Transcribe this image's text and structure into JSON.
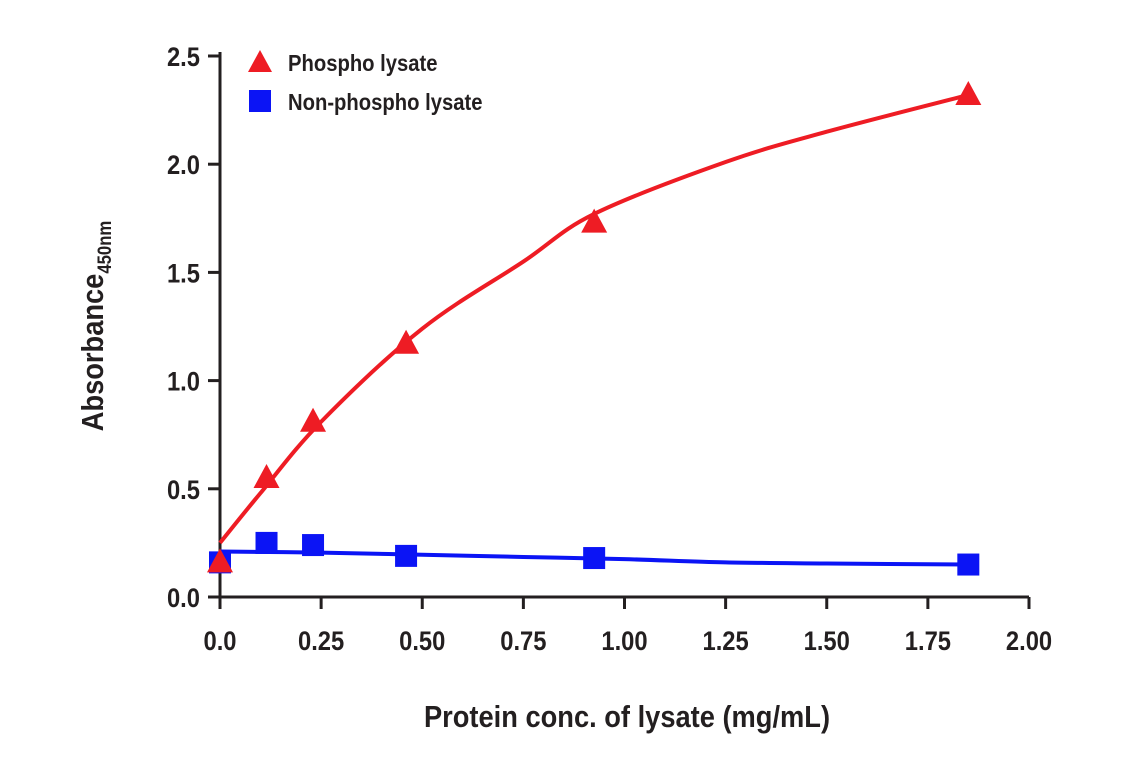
{
  "chart_data": {
    "type": "scatter",
    "title": "",
    "xlabel": "Protein conc. of lysate (mg/mL)",
    "ylabel": "Absorbance",
    "ylabel_subscript": "450nm",
    "xlim": [
      0,
      2.0
    ],
    "ylim": [
      0,
      2.5
    ],
    "x_ticks": [
      0,
      0.25,
      0.5,
      0.75,
      1.0,
      1.25,
      1.5,
      1.75,
      2.0
    ],
    "x_tick_labels": [
      "0.0",
      "0.25",
      "0.50",
      "0.75",
      "1.00",
      "1.25",
      "1.50",
      "1.75",
      "2.00"
    ],
    "y_ticks": [
      0,
      0.5,
      1.0,
      1.5,
      2.0,
      2.5
    ],
    "y_tick_labels": [
      "0.0",
      "0.5",
      "1.0",
      "1.5",
      "2.0",
      "2.5"
    ],
    "grid": false,
    "legend_position": "top-left",
    "series": [
      {
        "name": "Phospho lysate",
        "marker": "triangle",
        "color": "#ee1c24",
        "x": [
          0,
          0.115,
          0.23,
          0.46,
          0.925,
          1.85
        ],
        "values": [
          0.16,
          0.55,
          0.81,
          1.17,
          1.73,
          2.32
        ],
        "fit_curve": [
          [
            0,
            0.25
          ],
          [
            0.1,
            0.48
          ],
          [
            0.25,
            0.81
          ],
          [
            0.5,
            1.24
          ],
          [
            0.75,
            1.55
          ],
          [
            0.925,
            1.77
          ],
          [
            1.25,
            2.01
          ],
          [
            1.5,
            2.15
          ],
          [
            1.85,
            2.32
          ]
        ]
      },
      {
        "name": "Non-phospho lysate",
        "marker": "square",
        "color": "#0b14f5",
        "x": [
          0,
          0.115,
          0.23,
          0.46,
          0.925,
          1.85
        ],
        "values": [
          0.16,
          0.25,
          0.24,
          0.19,
          0.18,
          0.15
        ],
        "fit_curve": [
          [
            0,
            0.21
          ],
          [
            0.25,
            0.205
          ],
          [
            0.5,
            0.195
          ],
          [
            0.75,
            0.185
          ],
          [
            1.0,
            0.175
          ],
          [
            1.25,
            0.16
          ],
          [
            1.5,
            0.155
          ],
          [
            1.85,
            0.15
          ]
        ]
      }
    ]
  }
}
